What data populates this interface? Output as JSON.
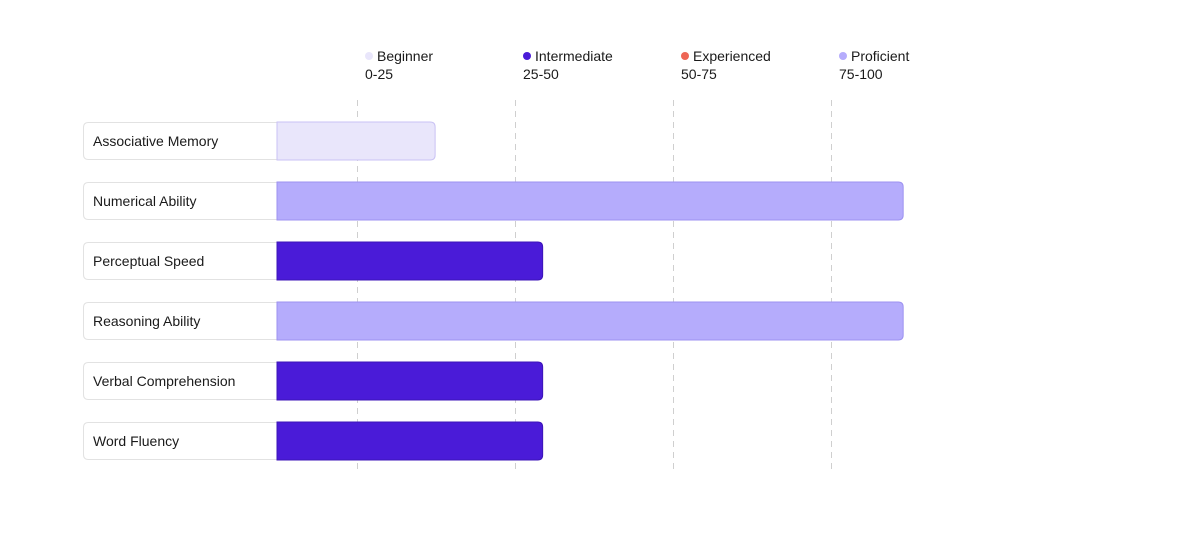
{
  "chart_data": {
    "type": "bar",
    "orientation": "horizontal",
    "xlim": [
      0,
      100
    ],
    "grid": true,
    "legend_placement": "top",
    "categories": [
      "Associative Memory",
      "Numerical Ability",
      "Perceptual Speed",
      "Reasoning Ability",
      "Verbal Comprehension",
      "Word Fluency"
    ],
    "values": [
      25,
      99,
      42,
      99,
      42,
      42
    ],
    "levels": [
      {
        "name": "Beginner",
        "range": "0-25",
        "color": "#e9e6fb"
      },
      {
        "name": "Intermediate",
        "range": "25-50",
        "color": "#4a1bd8"
      },
      {
        "name": "Experienced",
        "range": "50-75",
        "color": "#ee6655"
      },
      {
        "name": "Proficient",
        "range": "75-100",
        "color": "#b5acfc"
      }
    ]
  }
}
